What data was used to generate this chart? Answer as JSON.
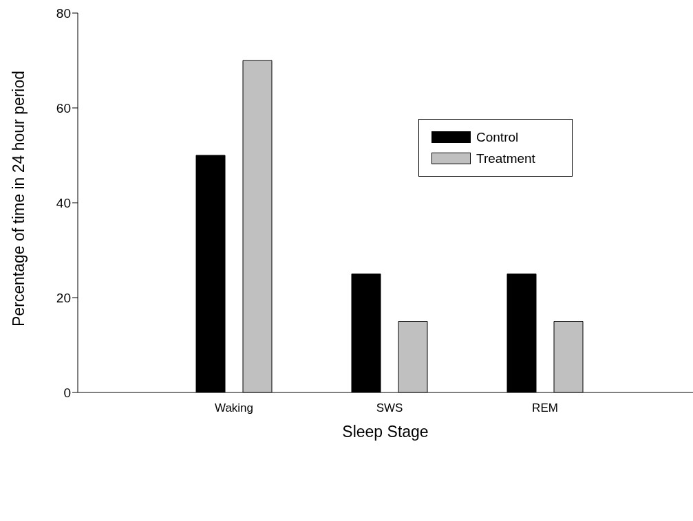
{
  "chart_data": {
    "type": "bar",
    "xlabel": "Sleep Stage",
    "ylabel": "Percentage of time in 24 hour period",
    "categories": [
      "Waking",
      "SWS",
      "REM"
    ],
    "series": [
      {
        "name": "Control",
        "color": "#000000",
        "values": [
          50,
          25,
          25
        ]
      },
      {
        "name": "Treatment",
        "color": "#c0c0c0",
        "values": [
          70,
          15,
          15
        ]
      }
    ],
    "ylim": [
      0,
      80
    ],
    "yticks": [
      0,
      20,
      40,
      60,
      80
    ],
    "grid": false,
    "legend": "top right"
  }
}
